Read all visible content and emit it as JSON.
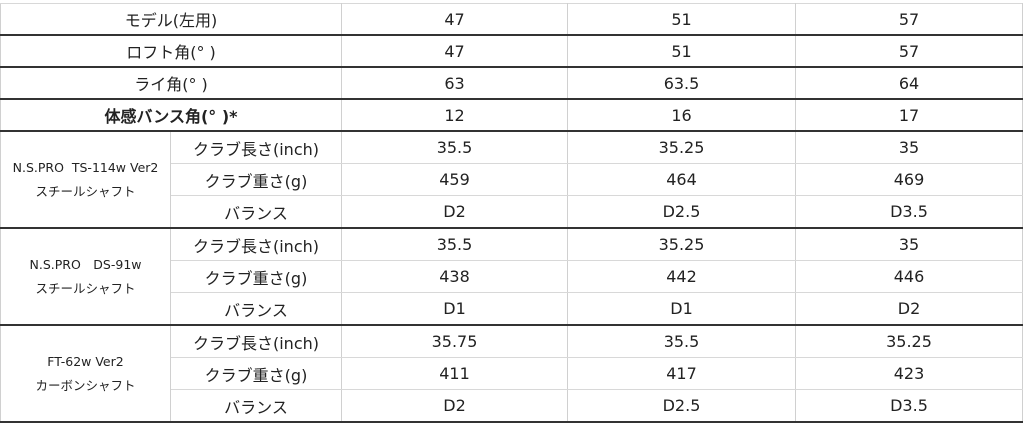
{
  "spec_rows": [
    {
      "label": "モデル(左用)",
      "values": [
        "47",
        "51",
        "57"
      ],
      "bold": false
    },
    {
      "label": "ロフト角(° )",
      "values": [
        "47",
        "51",
        "57"
      ],
      "bold": false
    },
    {
      "label": "ライ角(° )",
      "values": [
        "63",
        "63.5",
        "64"
      ],
      "bold": false
    },
    {
      "label": "体感バンス角(° )*",
      "values": [
        "12",
        "16",
        "17"
      ],
      "bold": true
    }
  ],
  "shafts": [
    {
      "name": "N.S.PRO  TS-114w Ver2",
      "type": "スチールシャフト",
      "rows": [
        {
          "label": "クラブ長さ(inch)",
          "values": [
            "35.5",
            "35.25",
            "35"
          ]
        },
        {
          "label": "クラブ重さ(g)",
          "values": [
            "459",
            "464",
            "469"
          ]
        },
        {
          "label": "バランス",
          "values": [
            "D2",
            "D2.5",
            "D3.5"
          ]
        }
      ]
    },
    {
      "name": "N.S.PRO　DS-91w",
      "type": "スチールシャフト",
      "rows": [
        {
          "label": "クラブ長さ(inch)",
          "values": [
            "35.5",
            "35.25",
            "35"
          ]
        },
        {
          "label": "クラブ重さ(g)",
          "values": [
            "438",
            "442",
            "446"
          ]
        },
        {
          "label": "バランス",
          "values": [
            "D1",
            "D1",
            "D2"
          ]
        }
      ]
    },
    {
      "name": "FT-62w Ver2",
      "type": "カーボンシャフト",
      "rows": [
        {
          "label": "クラブ長さ(inch)",
          "values": [
            "35.75",
            "35.5",
            "35.25"
          ]
        },
        {
          "label": "クラブ重さ(g)",
          "values": [
            "411",
            "417",
            "423"
          ]
        },
        {
          "label": "バランス",
          "values": [
            "D2",
            "D2.5",
            "D3.5"
          ]
        }
      ]
    }
  ]
}
